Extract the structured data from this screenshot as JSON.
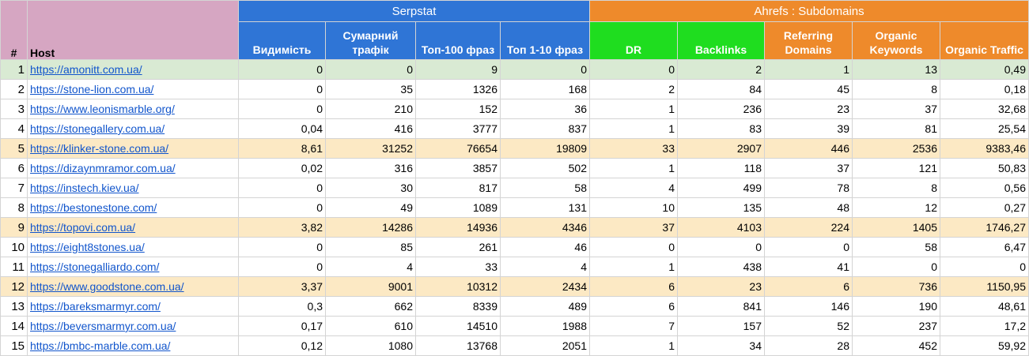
{
  "groups": {
    "serpstat": "Serpstat",
    "ahrefs": "Ahrefs : Subdomains"
  },
  "headers": {
    "index": "#",
    "host": "Host",
    "visibility": "Видимість",
    "total_traffic": "Сумарний трафік",
    "top100": "Топ-100 фраз",
    "top10": "Топ 1-10 фраз",
    "dr": "DR",
    "backlinks": "Backlinks",
    "ref_domains": "Referring Domains",
    "org_keywords": "Organic Keywords",
    "org_traffic": "Organic Traffic"
  },
  "colors": {
    "serpstat": "#2f75d6",
    "ahrefs": "#ee8a2b",
    "green_header": "#1fdd1f",
    "host_header": "#d6a6c2",
    "row_green": "#d9ead3",
    "row_yellow": "#fce9c4"
  },
  "rows": [
    {
      "idx": "1",
      "host": "https://amonitt.com.ua/",
      "vis": "0",
      "traffic": "0",
      "top100": "9",
      "top10": "0",
      "dr": "0",
      "backlinks": "2",
      "ref": "1",
      "kw": "13",
      "otraffic": "0,49",
      "highlight": "green"
    },
    {
      "idx": "2",
      "host": "https://stone-lion.com.ua/",
      "vis": "0",
      "traffic": "35",
      "top100": "1326",
      "top10": "168",
      "dr": "2",
      "backlinks": "84",
      "ref": "45",
      "kw": "8",
      "otraffic": "0,18",
      "highlight": ""
    },
    {
      "idx": "3",
      "host": "https://www.leonismarble.org/",
      "vis": "0",
      "traffic": "210",
      "top100": "152",
      "top10": "36",
      "dr": "1",
      "backlinks": "236",
      "ref": "23",
      "kw": "37",
      "otraffic": "32,68",
      "highlight": ""
    },
    {
      "idx": "4",
      "host": "https://stonegallery.com.ua/",
      "vis": "0,04",
      "traffic": "416",
      "top100": "3777",
      "top10": "837",
      "dr": "1",
      "backlinks": "83",
      "ref": "39",
      "kw": "81",
      "otraffic": "25,54",
      "highlight": ""
    },
    {
      "idx": "5",
      "host": "https://klinker-stone.com.ua/",
      "vis": "8,61",
      "traffic": "31252",
      "top100": "76654",
      "top10": "19809",
      "dr": "33",
      "backlinks": "2907",
      "ref": "446",
      "kw": "2536",
      "otraffic": "9383,46",
      "highlight": "yellow"
    },
    {
      "idx": "6",
      "host": "https://dizaynmramor.com.ua/",
      "vis": "0,02",
      "traffic": "316",
      "top100": "3857",
      "top10": "502",
      "dr": "1",
      "backlinks": "118",
      "ref": "37",
      "kw": "121",
      "otraffic": "50,83",
      "highlight": ""
    },
    {
      "idx": "7",
      "host": "https://instech.kiev.ua/",
      "vis": "0",
      "traffic": "30",
      "top100": "817",
      "top10": "58",
      "dr": "4",
      "backlinks": "499",
      "ref": "78",
      "kw": "8",
      "otraffic": "0,56",
      "highlight": ""
    },
    {
      "idx": "8",
      "host": "https://bestonestone.com/",
      "vis": "0",
      "traffic": "49",
      "top100": "1089",
      "top10": "131",
      "dr": "10",
      "backlinks": "135",
      "ref": "48",
      "kw": "12",
      "otraffic": "0,27",
      "highlight": ""
    },
    {
      "idx": "9",
      "host": "https://topovi.com.ua/",
      "vis": "3,82",
      "traffic": "14286",
      "top100": "14936",
      "top10": "4346",
      "dr": "37",
      "backlinks": "4103",
      "ref": "224",
      "kw": "1405",
      "otraffic": "1746,27",
      "highlight": "yellow"
    },
    {
      "idx": "10",
      "host": "https://eight8stones.ua/",
      "vis": "0",
      "traffic": "85",
      "top100": "261",
      "top10": "46",
      "dr": "0",
      "backlinks": "0",
      "ref": "0",
      "kw": "58",
      "otraffic": "6,47",
      "highlight": ""
    },
    {
      "idx": "11",
      "host": "https://stonegalliardo.com/",
      "vis": "0",
      "traffic": "4",
      "top100": "33",
      "top10": "4",
      "dr": "1",
      "backlinks": "438",
      "ref": "41",
      "kw": "0",
      "otraffic": "0",
      "highlight": ""
    },
    {
      "idx": "12",
      "host": "https://www.goodstone.com.ua/",
      "vis": "3,37",
      "traffic": "9001",
      "top100": "10312",
      "top10": "2434",
      "dr": "6",
      "backlinks": "23",
      "ref": "6",
      "kw": "736",
      "otraffic": "1150,95",
      "highlight": "yellow"
    },
    {
      "idx": "13",
      "host": "https://bareksmarmyr.com/",
      "vis": "0,3",
      "traffic": "662",
      "top100": "8339",
      "top10": "489",
      "dr": "6",
      "backlinks": "841",
      "ref": "146",
      "kw": "190",
      "otraffic": "48,61",
      "highlight": ""
    },
    {
      "idx": "14",
      "host": "https://beversmarmyr.com.ua/",
      "vis": "0,17",
      "traffic": "610",
      "top100": "14510",
      "top10": "1988",
      "dr": "7",
      "backlinks": "157",
      "ref": "52",
      "kw": "237",
      "otraffic": "17,2",
      "highlight": ""
    },
    {
      "idx": "15",
      "host": "https://bmbc-marble.com.ua/",
      "vis": "0,12",
      "traffic": "1080",
      "top100": "13768",
      "top10": "2051",
      "dr": "1",
      "backlinks": "34",
      "ref": "28",
      "kw": "452",
      "otraffic": "59,92",
      "highlight": ""
    }
  ]
}
